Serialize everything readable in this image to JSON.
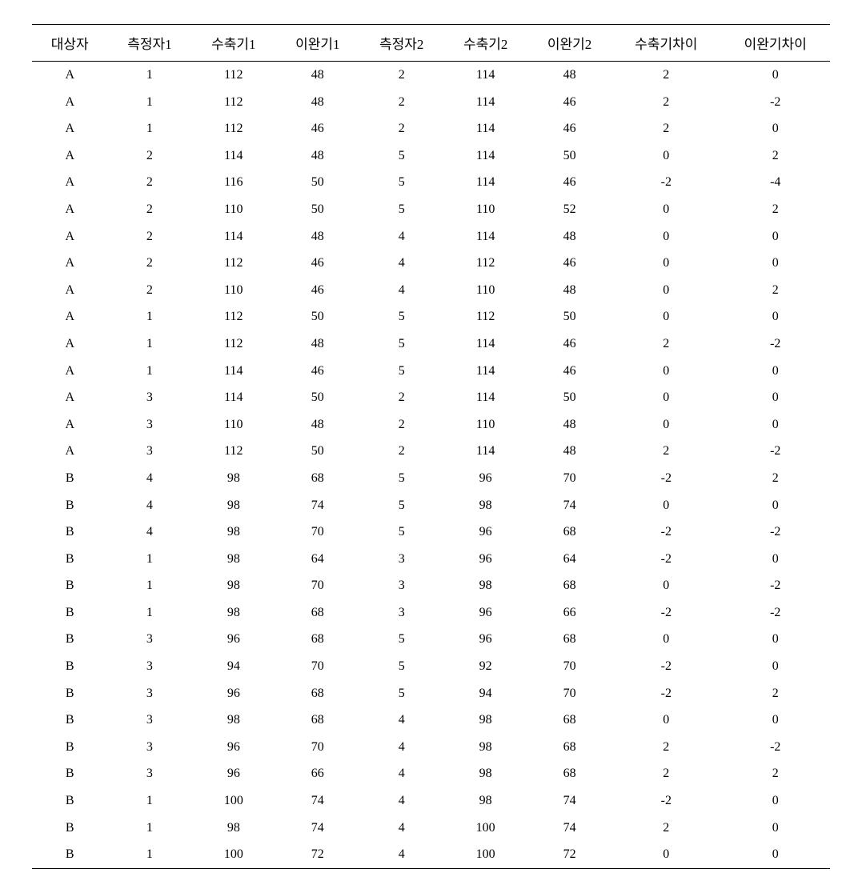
{
  "table": {
    "type": "table",
    "background_color": "#ffffff",
    "text_color": "#000000",
    "border_color": "#000000",
    "header_fontsize": 17,
    "cell_fontsize": 16,
    "columns": [
      {
        "key": "subject",
        "label": "대상자",
        "width": "9%",
        "align": "center"
      },
      {
        "key": "measurer1",
        "label": "측정자1",
        "width": "10%",
        "align": "center"
      },
      {
        "key": "systolic1",
        "label": "수축기1",
        "width": "10%",
        "align": "center"
      },
      {
        "key": "diastolic1",
        "label": "이완기1",
        "width": "10%",
        "align": "center"
      },
      {
        "key": "measurer2",
        "label": "측정자2",
        "width": "10%",
        "align": "center"
      },
      {
        "key": "systolic2",
        "label": "수축기2",
        "width": "10%",
        "align": "center"
      },
      {
        "key": "diastolic2",
        "label": "이완기2",
        "width": "10%",
        "align": "center"
      },
      {
        "key": "systolic_diff",
        "label": "수축기차이",
        "width": "13%",
        "align": "center"
      },
      {
        "key": "diastolic_diff",
        "label": "이완기차이",
        "width": "13%",
        "align": "center"
      }
    ],
    "rows": [
      [
        "A",
        "1",
        "112",
        "48",
        "2",
        "114",
        "48",
        "2",
        "0"
      ],
      [
        "A",
        "1",
        "112",
        "48",
        "2",
        "114",
        "46",
        "2",
        "-2"
      ],
      [
        "A",
        "1",
        "112",
        "46",
        "2",
        "114",
        "46",
        "2",
        "0"
      ],
      [
        "A",
        "2",
        "114",
        "48",
        "5",
        "114",
        "50",
        "0",
        "2"
      ],
      [
        "A",
        "2",
        "116",
        "50",
        "5",
        "114",
        "46",
        "-2",
        "-4"
      ],
      [
        "A",
        "2",
        "110",
        "50",
        "5",
        "110",
        "52",
        "0",
        "2"
      ],
      [
        "A",
        "2",
        "114",
        "48",
        "4",
        "114",
        "48",
        "0",
        "0"
      ],
      [
        "A",
        "2",
        "112",
        "46",
        "4",
        "112",
        "46",
        "0",
        "0"
      ],
      [
        "A",
        "2",
        "110",
        "46",
        "4",
        "110",
        "48",
        "0",
        "2"
      ],
      [
        "A",
        "1",
        "112",
        "50",
        "5",
        "112",
        "50",
        "0",
        "0"
      ],
      [
        "A",
        "1",
        "112",
        "48",
        "5",
        "114",
        "46",
        "2",
        "-2"
      ],
      [
        "A",
        "1",
        "114",
        "46",
        "5",
        "114",
        "46",
        "0",
        "0"
      ],
      [
        "A",
        "3",
        "114",
        "50",
        "2",
        "114",
        "50",
        "0",
        "0"
      ],
      [
        "A",
        "3",
        "110",
        "48",
        "2",
        "110",
        "48",
        "0",
        "0"
      ],
      [
        "A",
        "3",
        "112",
        "50",
        "2",
        "114",
        "48",
        "2",
        "-2"
      ],
      [
        "B",
        "4",
        "98",
        "68",
        "5",
        "96",
        "70",
        "-2",
        "2"
      ],
      [
        "B",
        "4",
        "98",
        "74",
        "5",
        "98",
        "74",
        "0",
        "0"
      ],
      [
        "B",
        "4",
        "98",
        "70",
        "5",
        "96",
        "68",
        "-2",
        "-2"
      ],
      [
        "B",
        "1",
        "98",
        "64",
        "3",
        "96",
        "64",
        "-2",
        "0"
      ],
      [
        "B",
        "1",
        "98",
        "70",
        "3",
        "98",
        "68",
        "0",
        "-2"
      ],
      [
        "B",
        "1",
        "98",
        "68",
        "3",
        "96",
        "66",
        "-2",
        "-2"
      ],
      [
        "B",
        "3",
        "96",
        "68",
        "5",
        "96",
        "68",
        "0",
        "0"
      ],
      [
        "B",
        "3",
        "94",
        "70",
        "5",
        "92",
        "70",
        "-2",
        "0"
      ],
      [
        "B",
        "3",
        "96",
        "68",
        "5",
        "94",
        "70",
        "-2",
        "2"
      ],
      [
        "B",
        "3",
        "98",
        "68",
        "4",
        "98",
        "68",
        "0",
        "0"
      ],
      [
        "B",
        "3",
        "96",
        "70",
        "4",
        "98",
        "68",
        "2",
        "-2"
      ],
      [
        "B",
        "3",
        "96",
        "66",
        "4",
        "98",
        "68",
        "2",
        "2"
      ],
      [
        "B",
        "1",
        "100",
        "74",
        "4",
        "98",
        "74",
        "-2",
        "0"
      ],
      [
        "B",
        "1",
        "98",
        "74",
        "4",
        "100",
        "74",
        "2",
        "0"
      ],
      [
        "B",
        "1",
        "100",
        "72",
        "4",
        "100",
        "72",
        "0",
        "0"
      ]
    ]
  }
}
